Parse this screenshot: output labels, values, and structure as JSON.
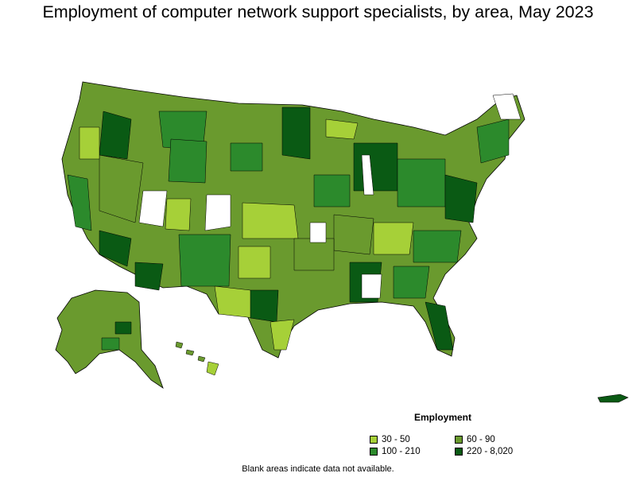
{
  "title": "Employment of computer network support specialists, by area, May 2023",
  "legend": {
    "title": "Employment",
    "items": [
      {
        "label": "30 - 50",
        "color": "#a6d038"
      },
      {
        "label": "60 - 90",
        "color": "#6a9a2e"
      },
      {
        "label": "100 - 210",
        "color": "#2c8a2c"
      },
      {
        "label": "220 - 8,020",
        "color": "#0a5a14"
      }
    ]
  },
  "footnote": "Blank areas indicate data not available.",
  "colors": {
    "outline": "#000000",
    "blank": "#ffffff"
  }
}
